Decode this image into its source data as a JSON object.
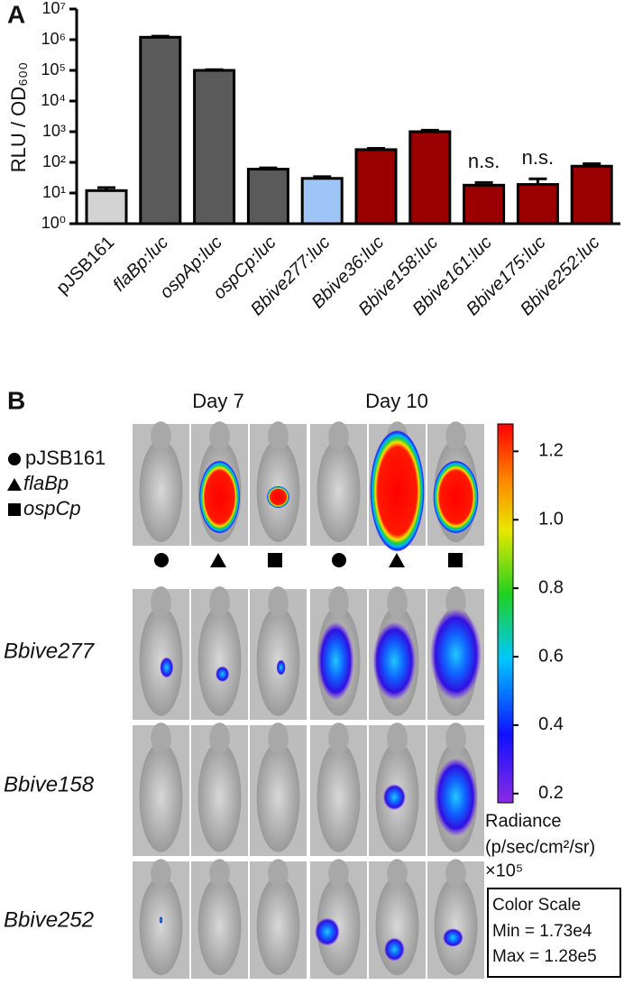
{
  "chart_data": [
    {
      "type": "bar",
      "panel_label": "A",
      "y_label": "RLU / OD₆₀₀",
      "y_scale": "log",
      "categories": [
        "pJSB161",
        "flaBp:luc",
        "ospAp:luc",
        "ospCp:luc",
        "Bbive277:luc",
        "Bbive36:luc",
        "Bbive158:luc",
        "Bbive161:luc",
        "Bbive175:luc",
        "Bbive252:luc"
      ],
      "values": [
        12,
        1200000,
        100000,
        60,
        30,
        260,
        1000,
        18,
        19,
        75
      ],
      "errors": [
        3,
        100000,
        5000,
        6,
        4,
        25,
        120,
        4,
        10,
        15
      ],
      "colors": [
        "#d3d3d3",
        "#5a5a5a",
        "#5a5a5a",
        "#5a5a5a",
        "#9ec5f5",
        "#9b0000",
        "#9b0000",
        "#9b0000",
        "#9b0000",
        "#9b0000"
      ],
      "ylim": [
        1,
        10000000
      ],
      "yticks": [
        {
          "value": 1,
          "label": "10⁰"
        },
        {
          "value": 10,
          "label": "10¹"
        },
        {
          "value": 100,
          "label": "10²"
        },
        {
          "value": 1000,
          "label": "10³"
        },
        {
          "value": 10000,
          "label": "10⁴"
        },
        {
          "value": 100000,
          "label": "10⁵"
        },
        {
          "value": 1000000,
          "label": "10⁶"
        },
        {
          "value": 10000000,
          "label": "10⁷"
        }
      ],
      "annotations": [
        {
          "text": "n.s.",
          "category": "Bbive161:luc"
        },
        {
          "text": "n.s.",
          "category": "Bbive175:luc"
        }
      ]
    },
    {
      "type": "image-grid",
      "panel_label": "B",
      "columns": [
        "Day 7",
        "Day 10"
      ],
      "row_groups": [
        [
          "pJSB161",
          "flaBp",
          "ospCp"
        ],
        [
          "Bbive277"
        ],
        [
          "Bbive158"
        ],
        [
          "Bbive252"
        ]
      ],
      "colorbar": {
        "lim": [
          0.173,
          1.28
        ],
        "ticks": [
          0.2,
          0.4,
          0.6,
          0.8,
          {
            "value": 1,
            "label": "1.0"
          },
          1.2
        ],
        "label": "Radiance",
        "unit": "(p/sec/cm²/sr)",
        "multiplier": "×10⁵",
        "box_title": "Color Scale",
        "min_label": "Min = 1.73e4",
        "max_label": "Max = 1.28e5"
      }
    }
  ]
}
